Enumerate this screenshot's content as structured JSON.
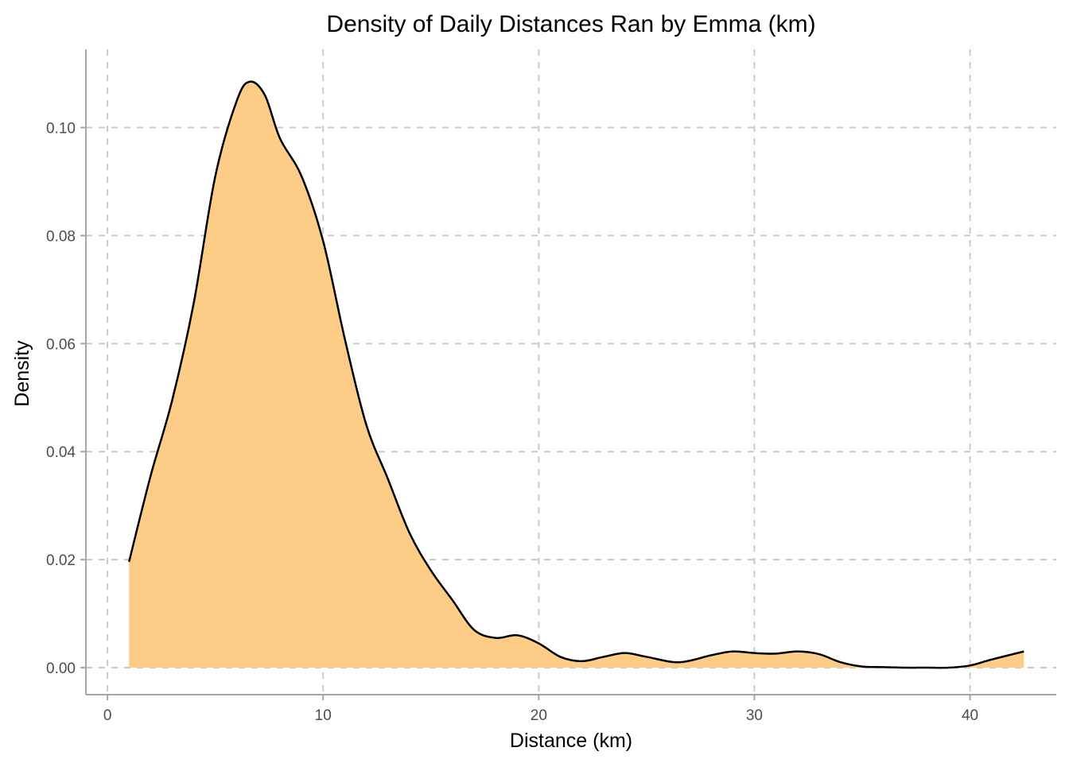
{
  "chart_data": {
    "type": "area",
    "title": "Density of Daily Distances Ran by Emma (km)",
    "xlabel": "Distance (km)",
    "ylabel": "Density",
    "xlim": [
      -1,
      44
    ],
    "ylim": [
      -0.005,
      0.1145
    ],
    "x_ticks": [
      0,
      10,
      20,
      30,
      40
    ],
    "x_tick_labels": [
      "0",
      "10",
      "20",
      "30",
      "40"
    ],
    "y_ticks": [
      0.0,
      0.02,
      0.04,
      0.06,
      0.08,
      0.1
    ],
    "y_tick_labels": [
      "0.00",
      "0.02",
      "0.04",
      "0.06",
      "0.08",
      "0.10"
    ],
    "grid": true,
    "grid_style": "dashed",
    "legend": "none",
    "fill_color": "#fdc980",
    "line_color": "#000000",
    "series": [
      {
        "x": [
          1.0,
          2.0,
          3.0,
          4.0,
          5.0,
          6.0,
          6.6,
          7.3,
          8.0,
          9.0,
          10.0,
          11.0,
          12.0,
          13.0,
          14.0,
          15.0,
          16.0,
          17.0,
          18.0,
          19.0,
          20.0,
          21.0,
          22.0,
          23.0,
          24.0,
          25.0,
          26.5,
          28.0,
          29.0,
          30.0,
          31.0,
          32.0,
          33.0,
          34.0,
          35.0,
          36.0,
          37.0,
          38.0,
          39.0,
          40.0,
          41.0,
          42.5
        ],
        "y": [
          0.0196,
          0.0355,
          0.0495,
          0.0675,
          0.091,
          0.105,
          0.1085,
          0.106,
          0.098,
          0.091,
          0.079,
          0.061,
          0.045,
          0.035,
          0.025,
          0.018,
          0.0125,
          0.007,
          0.0055,
          0.006,
          0.0045,
          0.002,
          0.0012,
          0.002,
          0.0027,
          0.002,
          0.001,
          0.0023,
          0.003,
          0.0027,
          0.0026,
          0.003,
          0.0025,
          0.001,
          0.0002,
          0.0001,
          0.0,
          0.0,
          0.0,
          0.0004,
          0.0015,
          0.003
        ]
      }
    ]
  }
}
